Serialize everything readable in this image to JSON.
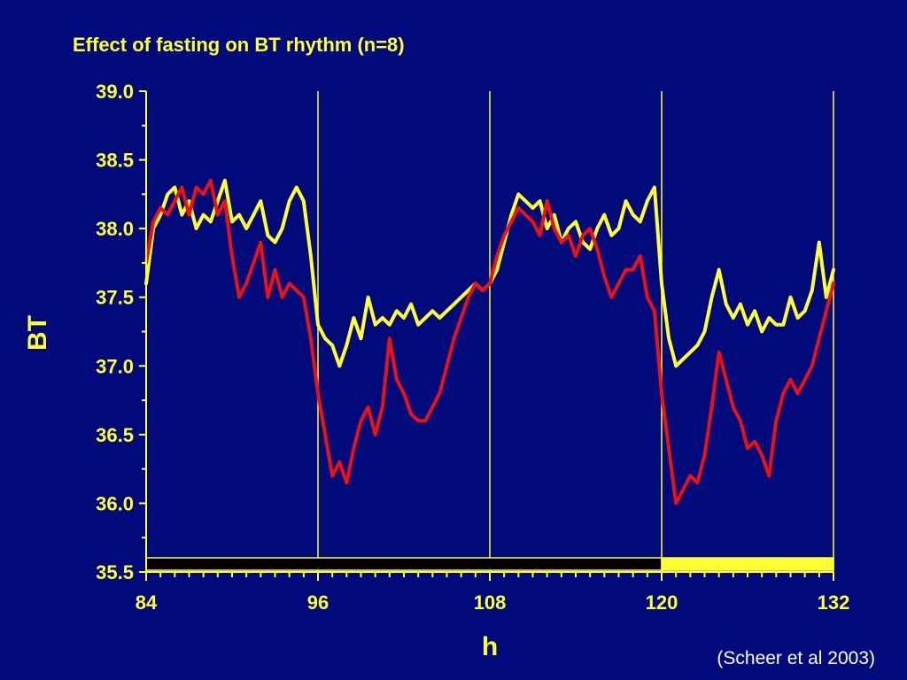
{
  "chart_data": {
    "type": "line",
    "title": "Effect of fasting on BT rhythm (n=8)",
    "xlabel": "h",
    "ylabel": "BT",
    "xlim": [
      84,
      132
    ],
    "ylim": [
      35.5,
      39.0
    ],
    "x_ticks": [
      "84",
      "96",
      "108",
      "120",
      "132"
    ],
    "y_ticks": [
      "35.5",
      "36.0",
      "36.5",
      "37.0",
      "37.5",
      "38.0",
      "38.5",
      "39.0"
    ],
    "vertical_gridlines_at": [
      96,
      108,
      120,
      132
    ],
    "annotation": "(Scheer et al 2003)",
    "colors": {
      "background": "#000a7a",
      "axis": "#ffff33",
      "series_1": "#ffff33",
      "series_2": "#ee1111",
      "dark_bar": "#000000",
      "light_bar": "#ffff33"
    },
    "light_dark_bar": [
      {
        "start": 84,
        "end": 120,
        "color": "dark"
      },
      {
        "start": 120,
        "end": 132,
        "color": "light"
      }
    ],
    "series": [
      {
        "color": "yellow",
        "x": [
          84,
          84.5,
          85,
          85.5,
          86,
          86.5,
          87,
          87.5,
          88,
          88.5,
          89,
          89.5,
          90,
          90.5,
          91,
          91.5,
          92,
          92.5,
          93,
          93.5,
          94,
          94.5,
          95,
          95.5,
          96,
          96.5,
          97,
          97.5,
          98,
          98.5,
          99,
          99.5,
          100,
          100.5,
          101,
          101.5,
          102,
          102.5,
          103,
          103.5,
          104,
          104.5,
          105,
          105.5,
          106,
          106.5,
          107,
          107.5,
          108,
          108.5,
          109,
          109.5,
          110,
          110.5,
          111,
          111.5,
          112,
          112.5,
          113,
          113.5,
          114,
          114.5,
          115,
          115.5,
          116,
          116.5,
          117,
          117.5,
          118,
          118.5,
          119,
          119.5,
          120,
          120.5,
          121,
          121.5,
          122,
          122.5,
          123,
          123.5,
          124,
          124.5,
          125,
          125.5,
          126,
          126.5,
          127,
          127.5,
          128,
          128.5,
          129,
          129.5,
          130,
          130.5,
          131,
          131.5,
          132
        ],
        "values": [
          37.6,
          38.0,
          38.1,
          38.25,
          38.3,
          38.1,
          38.2,
          38.0,
          38.1,
          38.05,
          38.2,
          38.35,
          38.05,
          38.1,
          38.0,
          38.1,
          38.2,
          37.95,
          37.9,
          38.0,
          38.2,
          38.3,
          38.2,
          37.8,
          37.3,
          37.2,
          37.15,
          37.0,
          37.15,
          37.35,
          37.2,
          37.5,
          37.3,
          37.35,
          37.3,
          37.4,
          37.35,
          37.45,
          37.3,
          37.35,
          37.4,
          37.35,
          37.4,
          37.45,
          37.5,
          37.55,
          37.6,
          37.55,
          37.6,
          37.7,
          37.9,
          38.1,
          38.25,
          38.2,
          38.15,
          38.2,
          38.0,
          38.1,
          37.9,
          38.0,
          38.05,
          37.9,
          37.85,
          38.0,
          38.1,
          37.95,
          38.0,
          38.2,
          38.1,
          38.05,
          38.2,
          38.3,
          37.6,
          37.2,
          37.0,
          37.05,
          37.1,
          37.15,
          37.25,
          37.5,
          37.7,
          37.45,
          37.35,
          37.45,
          37.3,
          37.4,
          37.25,
          37.35,
          37.3,
          37.3,
          37.5,
          37.35,
          37.4,
          37.55,
          37.9,
          37.5,
          37.7
        ]
      },
      {
        "color": "red",
        "x": [
          84,
          84.5,
          85,
          85.5,
          86,
          86.5,
          87,
          87.5,
          88,
          88.5,
          89,
          89.5,
          90,
          90.5,
          91,
          91.5,
          92,
          92.5,
          93,
          93.5,
          94,
          94.5,
          95,
          95.5,
          96,
          96.5,
          97,
          97.5,
          98,
          98.5,
          99,
          99.5,
          100,
          100.5,
          101,
          101.5,
          102,
          102.5,
          103,
          103.5,
          104,
          104.5,
          105,
          105.5,
          106,
          106.5,
          107,
          107.5,
          108,
          108.5,
          109,
          109.5,
          110,
          110.5,
          111,
          111.5,
          112,
          112.5,
          113,
          113.5,
          114,
          114.5,
          115,
          115.5,
          116,
          116.5,
          117,
          117.5,
          118,
          118.5,
          119,
          119.5,
          120,
          120.5,
          121,
          121.5,
          122,
          122.5,
          123,
          123.5,
          124,
          124.5,
          125,
          125.5,
          126,
          126.5,
          127,
          127.5,
          128,
          128.5,
          129,
          129.5,
          130,
          130.5,
          131,
          131.5,
          132
        ],
        "values": [
          37.75,
          38.05,
          38.15,
          38.1,
          38.2,
          38.3,
          38.1,
          38.3,
          38.25,
          38.35,
          38.1,
          38.2,
          37.8,
          37.5,
          37.6,
          37.75,
          37.9,
          37.5,
          37.7,
          37.5,
          37.6,
          37.55,
          37.5,
          37.2,
          36.8,
          36.5,
          36.2,
          36.3,
          36.15,
          36.4,
          36.6,
          36.7,
          36.5,
          36.7,
          37.2,
          36.9,
          36.8,
          36.65,
          36.6,
          36.6,
          36.7,
          36.8,
          37.0,
          37.2,
          37.35,
          37.5,
          37.6,
          37.55,
          37.6,
          37.8,
          37.95,
          38.05,
          38.15,
          38.1,
          38.05,
          37.95,
          38.2,
          38.0,
          37.9,
          37.95,
          37.8,
          37.95,
          38.0,
          37.85,
          37.65,
          37.5,
          37.6,
          37.7,
          37.7,
          37.8,
          37.5,
          37.4,
          36.8,
          36.4,
          36.0,
          36.1,
          36.2,
          36.15,
          36.35,
          36.7,
          37.1,
          36.9,
          36.7,
          36.6,
          36.4,
          36.45,
          36.35,
          36.2,
          36.6,
          36.8,
          36.9,
          36.8,
          36.9,
          37.0,
          37.2,
          37.4,
          37.6
        ]
      }
    ]
  }
}
